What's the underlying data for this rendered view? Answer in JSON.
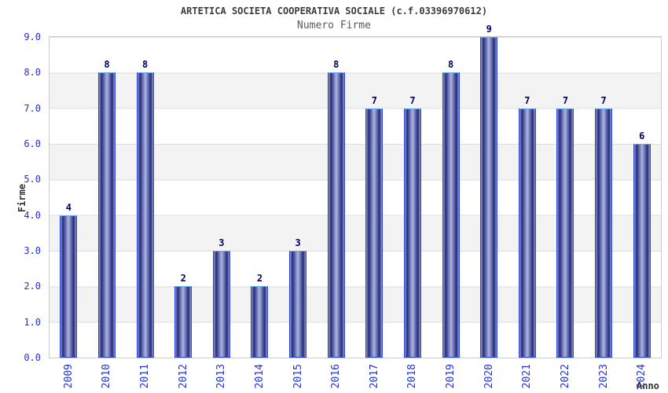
{
  "chart_data": {
    "type": "bar",
    "title": "ARTETICA SOCIETA COOPERATIVA SOCIALE (c.f.03396970612)",
    "subtitle": "Numero Firme",
    "xlabel": "Anno",
    "ylabel": "Firme",
    "categories": [
      "2009",
      "2010",
      "2011",
      "2012",
      "2013",
      "2014",
      "2015",
      "2016",
      "2017",
      "2018",
      "2019",
      "2020",
      "2021",
      "2022",
      "2023",
      "2024"
    ],
    "values": [
      4,
      8,
      8,
      2,
      3,
      2,
      3,
      8,
      7,
      7,
      8,
      9,
      7,
      7,
      7,
      6
    ],
    "ylim": [
      0,
      9
    ],
    "ytick_step": 1,
    "ytick_format": "one-decimal",
    "grid": "horizontal bands, alternating white and light gray, gridline each integer",
    "legend": "none",
    "bar_labels": "value shown above each bar",
    "x_tick_rotation": "vertical (reads bottom to top)",
    "colors": {
      "title_color": "#3c3c3c",
      "subtitle_color": "#5a5a5a",
      "axis_label": "#333333",
      "tick_label": "#2233cc",
      "value_label": "#00006e",
      "band_color": "#f3f3f3",
      "grid_line": "#dddddd",
      "frame_color": "#cccccc",
      "bar_border": "#2e46d2",
      "bar_top_cap": "#66a8f2",
      "bar_edge": "#9099cc",
      "bar_dark": "#252d7e",
      "bar_light": "#adb5e2"
    }
  }
}
